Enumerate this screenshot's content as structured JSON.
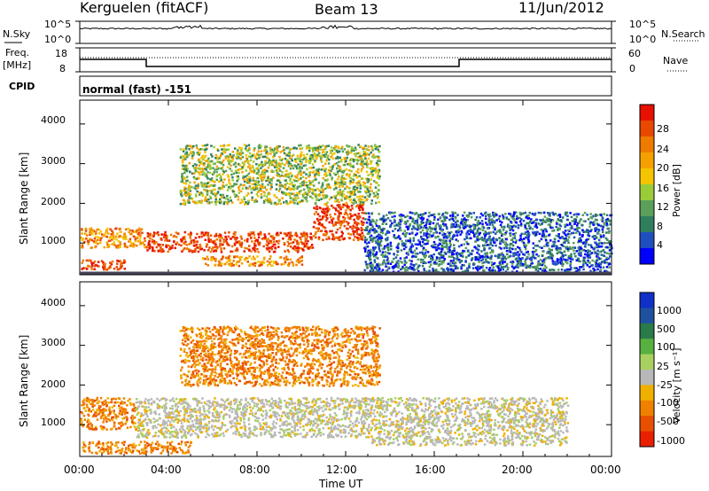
{
  "header": {
    "station": "Kerguelen (fitACF)",
    "beam": "Beam 13",
    "date": "11/Jun/2012"
  },
  "strips": {
    "nsky_label": "N.Sky",
    "nsky_ticks": [
      "10^5",
      "10^0"
    ],
    "nsearch_label": "N.Search",
    "nsearch_ticks": [
      "10^5",
      "10^0"
    ],
    "freq_label_line1": "Freq.",
    "freq_label_line2": "[MHz]",
    "freq_ticks": [
      "18",
      "8"
    ],
    "nave_label": "Nave",
    "nave_ticks": [
      "60",
      "0"
    ],
    "cpid_label": "CPID",
    "cpid_value": "normal (fast) -151"
  },
  "colors": {
    "power_scale": [
      "#0000ff",
      "#1f4fbf",
      "#2f7f5f",
      "#5aa05a",
      "#9acc3a",
      "#f5c400",
      "#f5a000",
      "#ee7a00",
      "#e84800",
      "#e81000"
    ],
    "velocity_scale": [
      "#1030c8",
      "#2050a0",
      "#2a7a4a",
      "#58b040",
      "#a8d060",
      "#b8b8b8",
      "#f0b000",
      "#f08000",
      "#e85000",
      "#e82000"
    ]
  },
  "chart_data": [
    {
      "type": "heatmap",
      "title": "Power",
      "xlabel": "Time UT",
      "ylabel": "Slant Range [km]",
      "x_ticks": [
        "00:00",
        "04:00",
        "08:00",
        "12:00",
        "16:00",
        "20:00",
        "00:00"
      ],
      "y_ticks": [
        1000,
        2000,
        3000,
        4000
      ],
      "ylim": [
        200,
        4600
      ],
      "colorbar": {
        "label": "Power [dB]",
        "ticks": [
          4,
          8,
          12,
          16,
          20,
          24,
          28
        ]
      },
      "scatter_regions": [
        {
          "t": [
            0.0,
            3.0
          ],
          "range": [
            900,
            1400
          ],
          "level": "high"
        },
        {
          "t": [
            3.0,
            10.5
          ],
          "range": [
            800,
            1300
          ],
          "level": "very high"
        },
        {
          "t": [
            10.5,
            12.8
          ],
          "range": [
            1100,
            2000
          ],
          "level": "very high"
        },
        {
          "t": [
            5.5,
            10.0
          ],
          "range": [
            450,
            700
          ],
          "level": "high"
        },
        {
          "t": [
            0.0,
            2.0
          ],
          "range": [
            350,
            600
          ],
          "level": "very high"
        },
        {
          "t": [
            12.8,
            24.0
          ],
          "range": [
            300,
            1800
          ],
          "level": "low"
        },
        {
          "t": [
            4.5,
            13.5
          ],
          "range": [
            2000,
            3500
          ],
          "level": "medium"
        }
      ]
    },
    {
      "type": "heatmap",
      "title": "Velocity",
      "xlabel": "Time UT",
      "ylabel": "Slant Range [km]",
      "x_ticks": [
        "00:00",
        "04:00",
        "08:00",
        "12:00",
        "16:00",
        "20:00",
        "00:00"
      ],
      "y_ticks": [
        1000,
        2000,
        3000,
        4000
      ],
      "ylim": [
        200,
        4600
      ],
      "colorbar": {
        "label": "Velocity [m s⁻¹]",
        "ticks": [
          1000,
          500,
          100,
          25,
          -25,
          -100,
          -500,
          -1000
        ]
      },
      "scatter_regions": [
        {
          "t": [
            0.0,
            2.5
          ],
          "range": [
            900,
            1700
          ],
          "level": "-100"
        },
        {
          "t": [
            2.5,
            13.0
          ],
          "range": [
            700,
            1700
          ],
          "level": "0"
        },
        {
          "t": [
            13.0,
            22.0
          ],
          "range": [
            500,
            1700
          ],
          "level": "0"
        },
        {
          "t": [
            0.0,
            5.0
          ],
          "range": [
            300,
            600
          ],
          "level": "-100"
        },
        {
          "t": [
            4.5,
            13.5
          ],
          "range": [
            2000,
            3500
          ],
          "level": "-100"
        }
      ]
    }
  ]
}
